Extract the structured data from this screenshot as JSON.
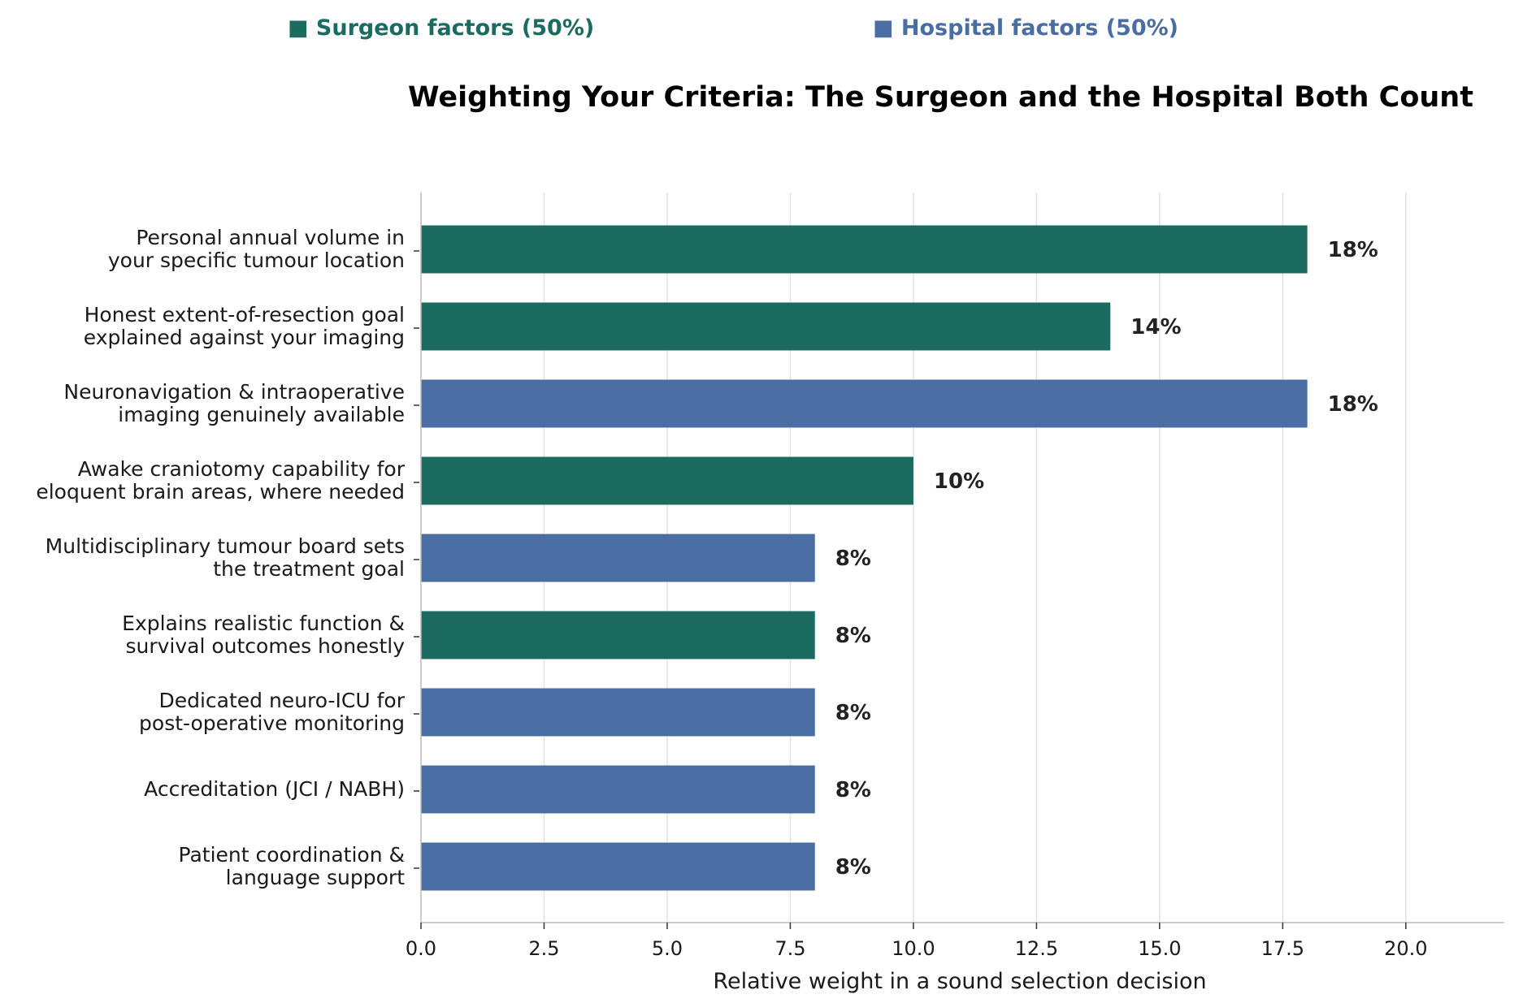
{
  "chart_data": {
    "type": "bar",
    "orientation": "horizontal",
    "title": "Weighting Your Criteria: The Surgeon and the Hospital Both Count",
    "xlabel": "Relative weight in a sound selection decision",
    "ylabel": "",
    "xlim": [
      0,
      22
    ],
    "xticks": [
      0.0,
      2.5,
      5.0,
      7.5,
      10.0,
      12.5,
      15.0,
      17.5,
      20.0
    ],
    "xtick_labels": [
      "0.0",
      "2.5",
      "5.0",
      "7.5",
      "10.0",
      "12.5",
      "15.0",
      "17.5",
      "20.0"
    ],
    "grid": "vertical",
    "legend": [
      {
        "label": "■ Surgeon factors (50%)",
        "group": "surgeon",
        "color": "#1b6b61"
      },
      {
        "label": "■ Hospital factors (50%)",
        "group": "hospital",
        "color": "#4a6ea3"
      }
    ],
    "legend_placement": "top",
    "colors": {
      "surgeon": "#1b6b61",
      "hospital": "#4a6ea3"
    },
    "bars": [
      {
        "category": [
          "Personal annual volume in",
          "your specific tumour location"
        ],
        "value": 18,
        "label": "18%",
        "group": "surgeon"
      },
      {
        "category": [
          "Honest extent-of-resection goal",
          "explained against your imaging"
        ],
        "value": 14,
        "label": "14%",
        "group": "surgeon"
      },
      {
        "category": [
          "Neuronavigation & intraoperative",
          "imaging genuinely available"
        ],
        "value": 18,
        "label": "18%",
        "group": "hospital"
      },
      {
        "category": [
          "Awake craniotomy capability for",
          "eloquent brain areas, where needed"
        ],
        "value": 10,
        "label": "10%",
        "group": "surgeon"
      },
      {
        "category": [
          "Multidisciplinary tumour board sets",
          "the treatment goal"
        ],
        "value": 8,
        "label": "8%",
        "group": "hospital"
      },
      {
        "category": [
          "Explains realistic function &",
          "survival outcomes honestly"
        ],
        "value": 8,
        "label": "8%",
        "group": "surgeon"
      },
      {
        "category": [
          "Dedicated neuro-ICU for",
          "post-operative monitoring"
        ],
        "value": 8,
        "label": "8%",
        "group": "hospital"
      },
      {
        "category": [
          "Accreditation (JCI / NABH)"
        ],
        "value": 8,
        "label": "8%",
        "group": "hospital"
      },
      {
        "category": [
          "Patient coordination &",
          "language support"
        ],
        "value": 8,
        "label": "8%",
        "group": "hospital"
      }
    ]
  }
}
